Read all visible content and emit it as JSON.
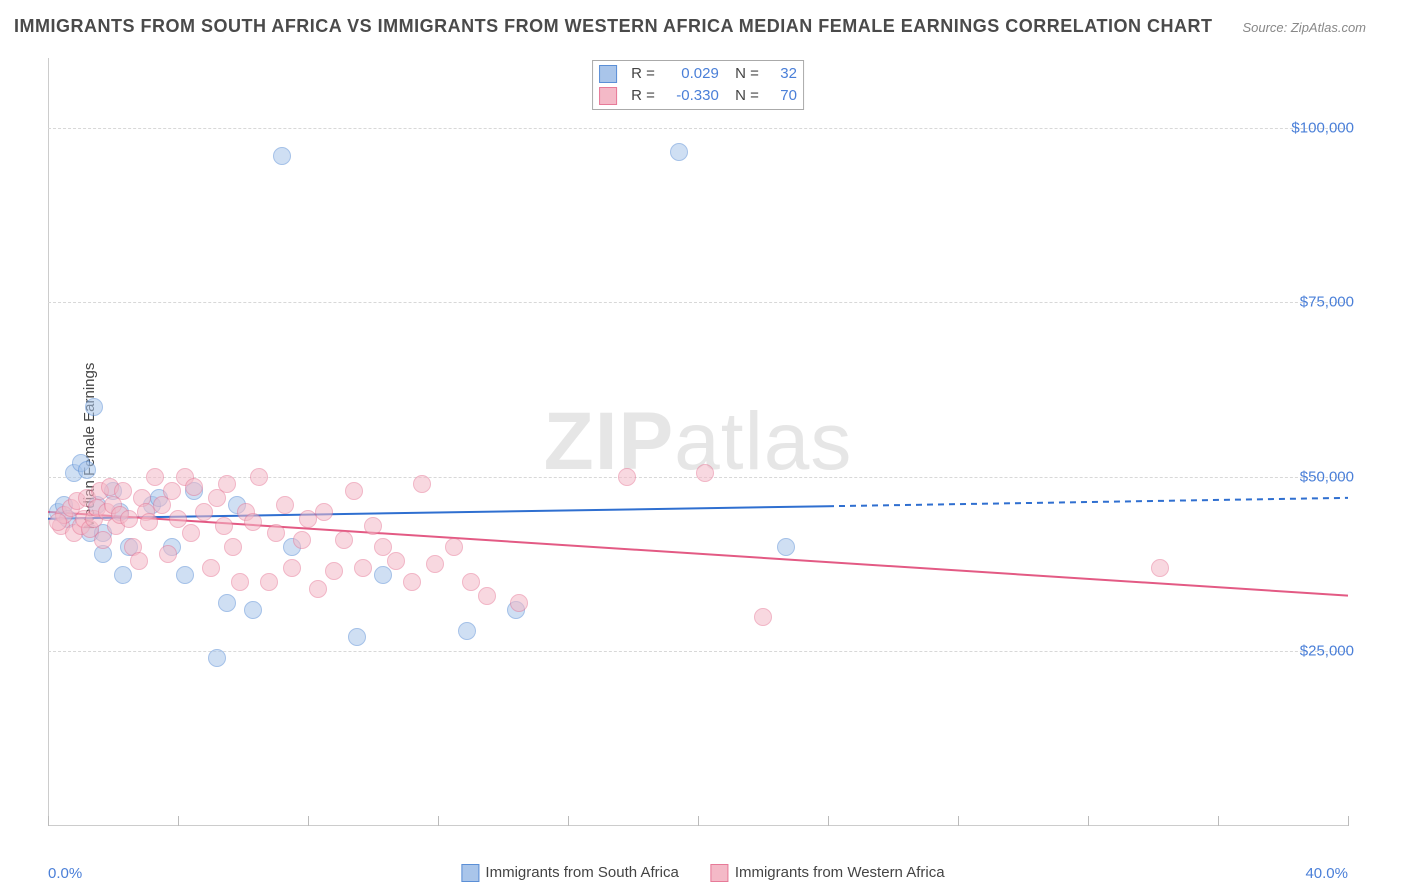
{
  "title": "IMMIGRANTS FROM SOUTH AFRICA VS IMMIGRANTS FROM WESTERN AFRICA MEDIAN FEMALE EARNINGS CORRELATION CHART",
  "source": "Source: ZipAtlas.com",
  "y_axis_label": "Median Female Earnings",
  "watermark_bold": "ZIP",
  "watermark_light": "atlas",
  "chart": {
    "type": "scatter",
    "xlim": [
      0,
      40
    ],
    "ylim": [
      0,
      110000
    ],
    "x_min_label": "0.0%",
    "x_max_label": "40.0%",
    "y_ticks": [
      25000,
      50000,
      75000,
      100000
    ],
    "y_tick_labels": [
      "$25,000",
      "$50,000",
      "$75,000",
      "$100,000"
    ],
    "x_tick_positions": [
      0,
      4,
      8,
      12,
      16,
      20,
      24,
      28,
      32,
      36,
      40
    ],
    "grid_color": "#d8d8d8",
    "background_color": "#ffffff",
    "marker_radius": 9,
    "marker_opacity": 0.55,
    "series": [
      {
        "name": "Immigrants from South Africa",
        "fill_color": "#a9c5ea",
        "stroke_color": "#5b8fd6",
        "line_color": "#2f6fd0",
        "R": "0.029",
        "N": "32",
        "trend": {
          "x0": 0,
          "y0": 44000,
          "x1": 40,
          "y1": 47000,
          "solid_until_x": 24
        },
        "points": [
          [
            0.3,
            45000
          ],
          [
            0.5,
            46000
          ],
          [
            0.6,
            44000
          ],
          [
            0.8,
            50500
          ],
          [
            1.0,
            52000
          ],
          [
            1.2,
            51000
          ],
          [
            1.3,
            42000
          ],
          [
            1.4,
            60000
          ],
          [
            1.5,
            46000
          ],
          [
            1.7,
            42000
          ],
          [
            1.7,
            39000
          ],
          [
            2.0,
            48000
          ],
          [
            2.2,
            45000
          ],
          [
            2.3,
            36000
          ],
          [
            2.5,
            40000
          ],
          [
            3.2,
            46000
          ],
          [
            3.4,
            47000
          ],
          [
            3.8,
            40000
          ],
          [
            4.2,
            36000
          ],
          [
            4.5,
            48000
          ],
          [
            5.2,
            24000
          ],
          [
            5.5,
            32000
          ],
          [
            5.8,
            46000
          ],
          [
            6.3,
            31000
          ],
          [
            7.2,
            96000
          ],
          [
            7.5,
            40000
          ],
          [
            9.5,
            27000
          ],
          [
            10.3,
            36000
          ],
          [
            12.9,
            28000
          ],
          [
            14.4,
            31000
          ],
          [
            19.4,
            96500
          ],
          [
            22.7,
            40000
          ]
        ]
      },
      {
        "name": "Immigrants from Western Africa",
        "fill_color": "#f4b9c7",
        "stroke_color": "#e77a98",
        "line_color": "#e35a84",
        "R": "-0.330",
        "N": "70",
        "trend": {
          "x0": 0,
          "y0": 45000,
          "x1": 40,
          "y1": 33000,
          "solid_until_x": 40
        },
        "points": [
          [
            0.4,
            43000
          ],
          [
            0.5,
            44500
          ],
          [
            0.7,
            45500
          ],
          [
            0.8,
            42000
          ],
          [
            0.9,
            46500
          ],
          [
            1.0,
            43000
          ],
          [
            1.1,
            44000
          ],
          [
            1.2,
            47000
          ],
          [
            1.3,
            42500
          ],
          [
            1.4,
            44000
          ],
          [
            1.5,
            45500
          ],
          [
            1.6,
            48000
          ],
          [
            1.7,
            41000
          ],
          [
            1.8,
            45000
          ],
          [
            1.9,
            48500
          ],
          [
            2.0,
            46000
          ],
          [
            2.1,
            43000
          ],
          [
            2.2,
            44500
          ],
          [
            2.3,
            48000
          ],
          [
            2.5,
            44000
          ],
          [
            2.6,
            40000
          ],
          [
            2.8,
            38000
          ],
          [
            2.9,
            47000
          ],
          [
            3.0,
            45000
          ],
          [
            3.1,
            43500
          ],
          [
            3.3,
            50000
          ],
          [
            3.5,
            46000
          ],
          [
            3.7,
            39000
          ],
          [
            3.8,
            48000
          ],
          [
            4.0,
            44000
          ],
          [
            4.2,
            50000
          ],
          [
            4.4,
            42000
          ],
          [
            4.5,
            48500
          ],
          [
            4.8,
            45000
          ],
          [
            5.0,
            37000
          ],
          [
            5.2,
            47000
          ],
          [
            5.4,
            43000
          ],
          [
            5.5,
            49000
          ],
          [
            5.7,
            40000
          ],
          [
            5.9,
            35000
          ],
          [
            6.1,
            45000
          ],
          [
            6.3,
            43500
          ],
          [
            6.5,
            50000
          ],
          [
            6.8,
            35000
          ],
          [
            7.0,
            42000
          ],
          [
            7.3,
            46000
          ],
          [
            7.5,
            37000
          ],
          [
            7.8,
            41000
          ],
          [
            8.0,
            44000
          ],
          [
            8.3,
            34000
          ],
          [
            8.5,
            45000
          ],
          [
            8.8,
            36500
          ],
          [
            9.1,
            41000
          ],
          [
            9.4,
            48000
          ],
          [
            9.7,
            37000
          ],
          [
            10.0,
            43000
          ],
          [
            10.3,
            40000
          ],
          [
            10.7,
            38000
          ],
          [
            11.2,
            35000
          ],
          [
            11.5,
            49000
          ],
          [
            11.9,
            37500
          ],
          [
            12.5,
            40000
          ],
          [
            13.0,
            35000
          ],
          [
            13.5,
            33000
          ],
          [
            14.5,
            32000
          ],
          [
            17.8,
            50000
          ],
          [
            20.2,
            50500
          ],
          [
            22.0,
            30000
          ],
          [
            34.2,
            37000
          ],
          [
            0.3,
            43500
          ]
        ]
      }
    ],
    "bottom_legend": [
      {
        "label": "Immigrants from South Africa",
        "fill": "#a9c5ea",
        "stroke": "#5b8fd6"
      },
      {
        "label": "Immigrants from Western Africa",
        "fill": "#f4b9c7",
        "stroke": "#e77a98"
      }
    ]
  }
}
